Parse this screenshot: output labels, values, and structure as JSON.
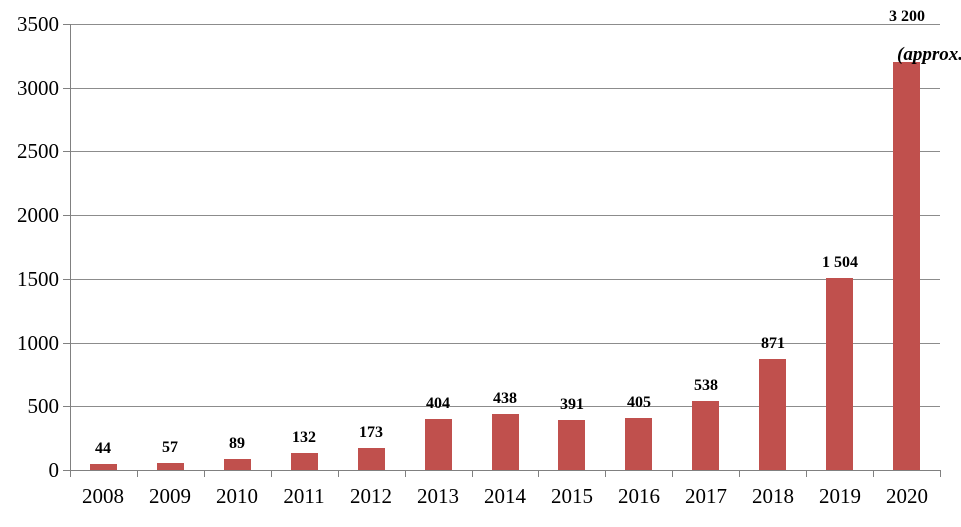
{
  "chart_data": {
    "type": "bar",
    "title": "",
    "xlabel": "",
    "ylabel": "",
    "categories": [
      "2008",
      "2009",
      "2010",
      "2011",
      "2012",
      "2013",
      "2014",
      "2015",
      "2016",
      "2017",
      "2018",
      "2019",
      "2020"
    ],
    "values": [
      44,
      57,
      89,
      132,
      173,
      404,
      438,
      391,
      405,
      538,
      871,
      1504,
      3200
    ],
    "value_labels": [
      "44",
      "57",
      "89",
      "132",
      "173",
      "404",
      "438",
      "391",
      "405",
      "538",
      "871",
      "1 504",
      "3 200"
    ],
    "annotations": [
      {
        "text": "(approx.",
        "category": "2020",
        "style": "bold-italic",
        "clipped_at_right_edge": true
      }
    ],
    "ylim": [
      0,
      3500
    ],
    "ytick_interval": 500,
    "ytick_labels": [
      "0",
      "500",
      "1000",
      "1500",
      "2000",
      "2500",
      "3000",
      "3500"
    ],
    "grid": "horizontal",
    "legend": "none",
    "colors": {
      "bar": "#C0504D",
      "gridline": "#8C8C8C",
      "axis": "#808080",
      "text": "#000000",
      "background": "#FFFFFF"
    }
  }
}
